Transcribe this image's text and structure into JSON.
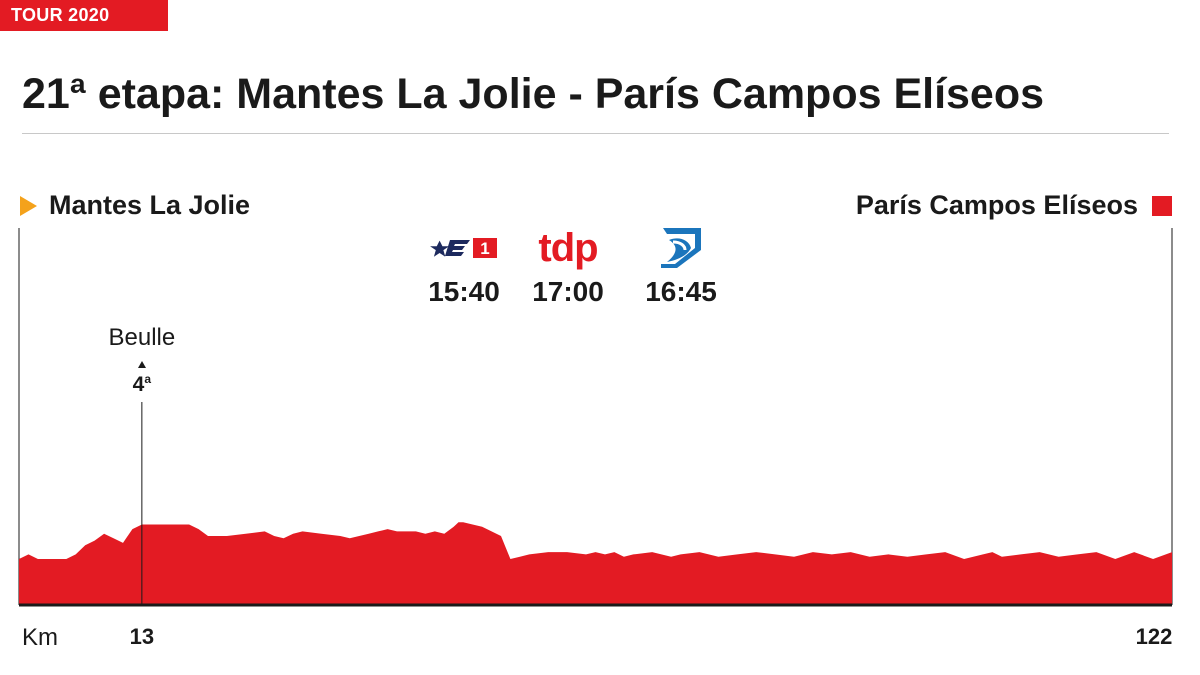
{
  "tag": "TOUR 2020",
  "title": "21ª etapa: Mantes La Jolie - París Campos Elíseos",
  "start": "Mantes La Jolie",
  "finish": "París Campos Elíseos",
  "broadcasters": [
    {
      "name": "Eurosport 1",
      "time": "15:40",
      "icon": "eurosport-1-logo"
    },
    {
      "name": "tdp",
      "time": "17:00",
      "icon": "tdp-logo"
    },
    {
      "name": "ETB",
      "time": "16:45",
      "icon": "etb-logo"
    }
  ],
  "colors": {
    "accent": "#e31b23",
    "start_marker": "#f4a21b",
    "text": "#1a1a1a"
  },
  "chart_data": {
    "type": "area",
    "xlabel": "Km",
    "x_ticks": [
      13,
      122
    ],
    "xlim": [
      0,
      122
    ],
    "climbs": [
      {
        "name": "Beulle",
        "category": "4",
        "km": 13
      }
    ],
    "profile_km": [
      0,
      1,
      2,
      4,
      5,
      6,
      7,
      8,
      9,
      10,
      11,
      12,
      13,
      14,
      15,
      16,
      17,
      18,
      19,
      20,
      22,
      24,
      26,
      27,
      28,
      29,
      30,
      32,
      34,
      35,
      36,
      37,
      38,
      39,
      40,
      42,
      43,
      44,
      45,
      46,
      46.5,
      47,
      48,
      49,
      51,
      52,
      53,
      54,
      56,
      58,
      60,
      61,
      62,
      63,
      64,
      65,
      67,
      69,
      70,
      72,
      74,
      76,
      78,
      80,
      82,
      84,
      86,
      88,
      90,
      92,
      94,
      96,
      98,
      100,
      102,
      103,
      104,
      106,
      108,
      110,
      112,
      114,
      116,
      118,
      120,
      122
    ],
    "profile_elev": [
      40,
      44,
      40,
      40,
      40,
      44,
      52,
      56,
      62,
      58,
      54,
      66,
      70,
      70,
      70,
      70,
      70,
      70,
      66,
      60,
      60,
      62,
      64,
      60,
      58,
      62,
      64,
      62,
      60,
      58,
      60,
      62,
      64,
      66,
      64,
      64,
      62,
      64,
      62,
      68,
      72,
      72,
      70,
      68,
      60,
      40,
      42,
      44,
      46,
      46,
      44,
      46,
      44,
      46,
      42,
      44,
      46,
      42,
      44,
      46,
      42,
      44,
      46,
      44,
      42,
      46,
      44,
      46,
      42,
      44,
      42,
      44,
      46,
      40,
      44,
      46,
      42,
      44,
      46,
      42,
      44,
      46,
      40,
      46,
      40,
      46
    ]
  }
}
